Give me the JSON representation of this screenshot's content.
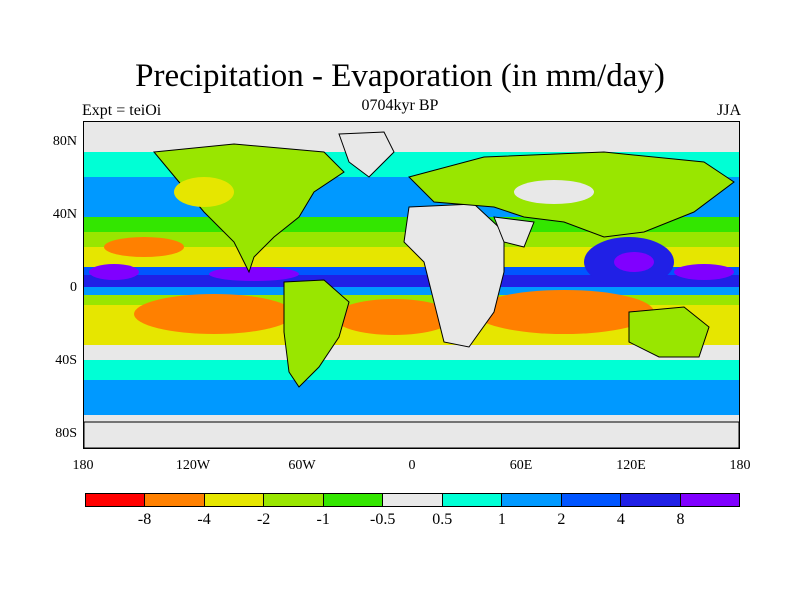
{
  "title": "Precipitation - Evaporation (in mm/day)",
  "subtitle": "0704kyr BP",
  "left_label": "Expt = teiOi",
  "right_label": "JJA",
  "map": {
    "x_ticks": [
      "180",
      "120W",
      "60W",
      "0",
      "60E",
      "120E",
      "180"
    ],
    "y_ticks": [
      "80N",
      "40N",
      "0",
      "40S",
      "80S"
    ],
    "background_color": "#e8e8e8"
  },
  "colorbar": {
    "colors": [
      "#ff0000",
      "#ff8000",
      "#e6e600",
      "#99e600",
      "#33e600",
      "#e8e8e8",
      "#00ffd5",
      "#0099ff",
      "#0055ff",
      "#2020e6",
      "#8000ff"
    ],
    "labels": [
      "-8",
      "-4",
      "-2",
      "-1",
      "-0.5",
      "0.5",
      "1",
      "2",
      "4",
      "8"
    ]
  }
}
